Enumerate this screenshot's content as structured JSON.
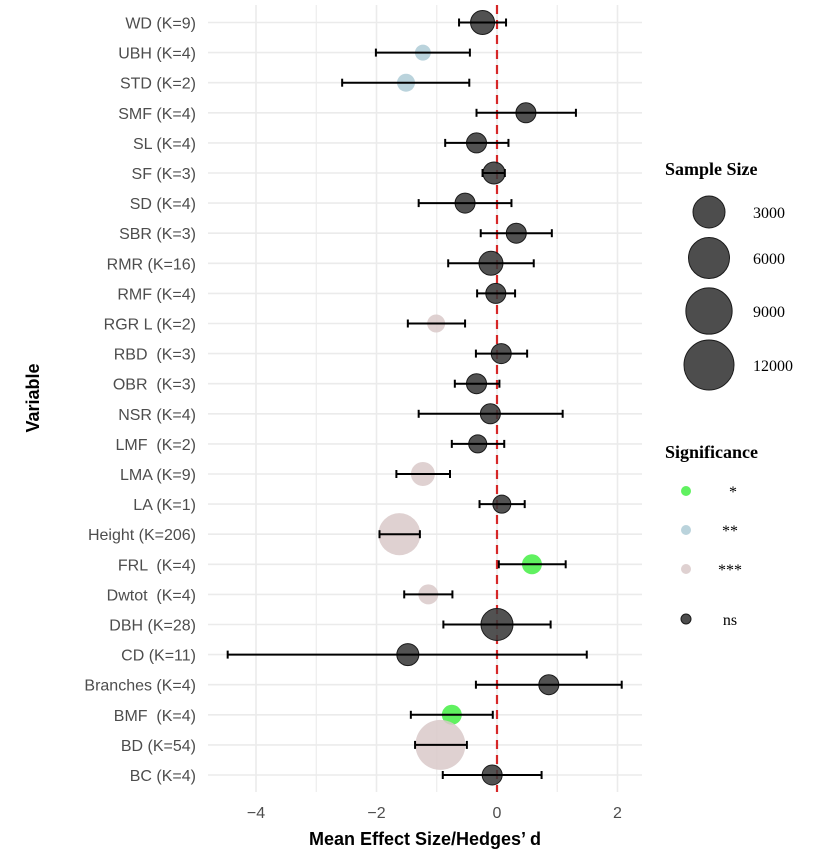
{
  "chart_data": {
    "type": "scatter",
    "subtype": "forest-plot",
    "title": "",
    "xlabel": "Mean Effect Size/Hedges’ d",
    "ylabel": "Variable",
    "xlim": [
      -4.8,
      2.4
    ],
    "x_ticks": [
      -4,
      -2,
      0,
      2
    ],
    "x_tick_labels": [
      "−4",
      "−2",
      "0",
      "2"
    ],
    "grid": true,
    "reference_line": {
      "x": 0,
      "style": "dashed",
      "color": "#d62728"
    },
    "significance_colors": {
      "*": "#44ee44",
      "**": "#aecbd6",
      "***": "#d9c9c9",
      "ns": "#3a3a3a"
    },
    "rows": [
      {
        "label": "WD (K=9)",
        "d": -0.24,
        "ci_low": -0.63,
        "ci_high": 0.15,
        "sample_size": 1620,
        "significance": "ns"
      },
      {
        "label": "UBH (K=4)",
        "d": -1.23,
        "ci_low": -2.01,
        "ci_high": -0.45,
        "sample_size": 870,
        "significance": "**"
      },
      {
        "label": "STD (K=2)",
        "d": -1.51,
        "ci_low": -2.57,
        "ci_high": -0.46,
        "sample_size": 1020,
        "significance": "**"
      },
      {
        "label": "SMF (K=4)",
        "d": 0.48,
        "ci_low": -0.34,
        "ci_high": 1.31,
        "sample_size": 1190,
        "significance": "ns"
      },
      {
        "label": "SL (K=4)",
        "d": -0.34,
        "ci_low": -0.86,
        "ci_high": 0.19,
        "sample_size": 1190,
        "significance": "ns"
      },
      {
        "label": "SF (K=3)",
        "d": -0.05,
        "ci_low": -0.24,
        "ci_high": 0.13,
        "sample_size": 1390,
        "significance": "ns"
      },
      {
        "label": "SD (K=4)",
        "d": -0.53,
        "ci_low": -1.3,
        "ci_high": 0.24,
        "sample_size": 1190,
        "significance": "ns"
      },
      {
        "label": "SBR (K=3)",
        "d": 0.32,
        "ci_low": -0.27,
        "ci_high": 0.91,
        "sample_size": 1190,
        "significance": "ns"
      },
      {
        "label": "RMR (K=16)",
        "d": -0.1,
        "ci_low": -0.81,
        "ci_high": 0.61,
        "sample_size": 1620,
        "significance": "ns"
      },
      {
        "label": "RMF (K=4)",
        "d": -0.02,
        "ci_low": -0.33,
        "ci_high": 0.3,
        "sample_size": 1190,
        "significance": "ns"
      },
      {
        "label": "RGR L (K=2)",
        "d": -1.01,
        "ci_low": -1.48,
        "ci_high": -0.53,
        "sample_size": 1020,
        "significance": "***"
      },
      {
        "label": "RBD  (K=3)",
        "d": 0.07,
        "ci_low": -0.35,
        "ci_high": 0.5,
        "sample_size": 1190,
        "significance": "ns"
      },
      {
        "label": "OBR  (K=3)",
        "d": -0.34,
        "ci_low": -0.7,
        "ci_high": 0.04,
        "sample_size": 1190,
        "significance": "ns"
      },
      {
        "label": "NSR (K=4)",
        "d": -0.11,
        "ci_low": -1.3,
        "ci_high": 1.09,
        "sample_size": 1190,
        "significance": "ns"
      },
      {
        "label": "LMF  (K=2)",
        "d": -0.32,
        "ci_low": -0.75,
        "ci_high": 0.12,
        "sample_size": 1020,
        "significance": "ns"
      },
      {
        "label": "LMA (K=9)",
        "d": -1.23,
        "ci_low": -1.67,
        "ci_high": -0.78,
        "sample_size": 1620,
        "significance": "***"
      },
      {
        "label": "LA (K=1)",
        "d": 0.08,
        "ci_low": -0.29,
        "ci_high": 0.46,
        "sample_size": 1020,
        "significance": "ns"
      },
      {
        "label": "Height (K=206)",
        "d": -1.62,
        "ci_low": -1.95,
        "ci_high": -1.28,
        "sample_size": 6500,
        "significance": "***"
      },
      {
        "label": "FRL  (K=4)",
        "d": 0.58,
        "ci_low": 0.03,
        "ci_high": 1.14,
        "sample_size": 1190,
        "significance": "*"
      },
      {
        "label": "Dwtot  (K=4)",
        "d": -1.14,
        "ci_low": -1.54,
        "ci_high": -0.74,
        "sample_size": 1190,
        "significance": "***"
      },
      {
        "label": "DBH (K=28)",
        "d": 0.0,
        "ci_low": -0.89,
        "ci_high": 0.89,
        "sample_size": 3000,
        "significance": "ns"
      },
      {
        "label": "CD (K=11)",
        "d": -1.48,
        "ci_low": -4.47,
        "ci_high": 1.49,
        "sample_size": 1390,
        "significance": "ns"
      },
      {
        "label": "Branches (K=4)",
        "d": 0.86,
        "ci_low": -0.35,
        "ci_high": 2.07,
        "sample_size": 1190,
        "significance": "ns"
      },
      {
        "label": "BMF  (K=4)",
        "d": -0.75,
        "ci_low": -1.43,
        "ci_high": -0.07,
        "sample_size": 1190,
        "significance": "*"
      },
      {
        "label": "BD (K=54)",
        "d": -0.94,
        "ci_low": -1.36,
        "ci_high": -0.5,
        "sample_size": 12000,
        "significance": "***"
      },
      {
        "label": "BC (K=4)",
        "d": -0.08,
        "ci_low": -0.9,
        "ci_high": 0.74,
        "sample_size": 1190,
        "significance": "ns"
      }
    ],
    "legend": {
      "placement": "right",
      "size": {
        "title": "Sample Size",
        "entries": [
          {
            "label": "3000",
            "value": 3000
          },
          {
            "label": "6000",
            "value": 6000
          },
          {
            "label": "9000",
            "value": 9000
          },
          {
            "label": "12000",
            "value": 12000
          }
        ]
      },
      "significance": {
        "title": "Significance",
        "entries": [
          {
            "label": "*",
            "color": "#44ee44"
          },
          {
            "label": "**",
            "color": "#aecbd6"
          },
          {
            "label": "***",
            "color": "#d9c9c9"
          },
          {
            "label": "ns",
            "color": "#3a3a3a"
          }
        ]
      }
    }
  }
}
